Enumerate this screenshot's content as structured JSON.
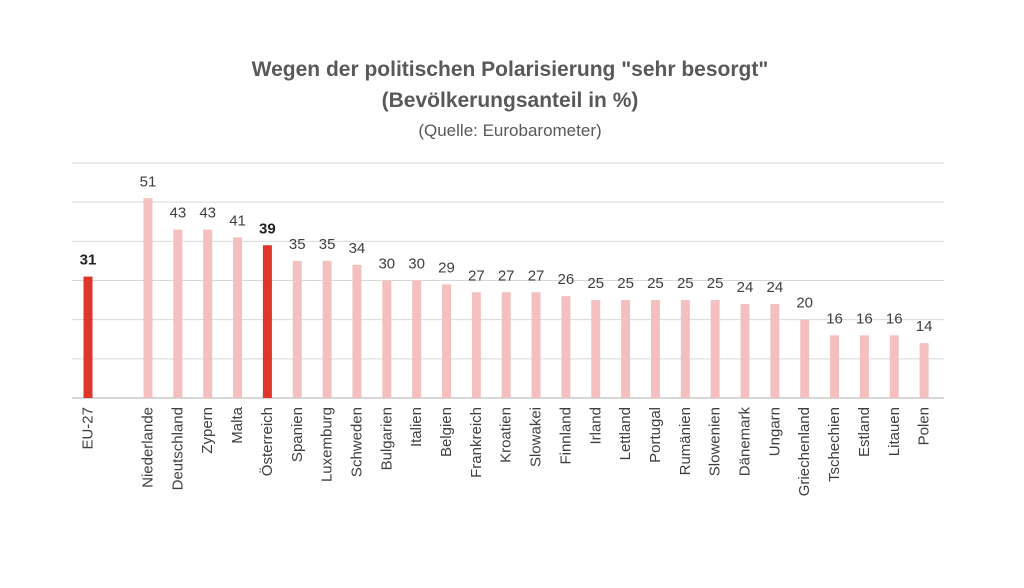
{
  "chart_data": {
    "type": "bar",
    "title_line1": "Wegen der politischen Polarisierung \"sehr besorgt\"",
    "title_line2": "(Bevölkerungsanteil in %)",
    "subtitle": "(Quelle: Eurobarometer)",
    "categories": [
      "EU-27",
      "Niederlande",
      "Deutschland",
      "Zypern",
      "Malta",
      "Österreich",
      "Spanien",
      "Luxemburg",
      "Schweden",
      "Bulgarien",
      "Italien",
      "Belgien",
      "Frankreich",
      "Kroatien",
      "Slowakei",
      "Finnland",
      "Irland",
      "Lettland",
      "Portugal",
      "Rumänien",
      "Slowenien",
      "Dänemark",
      "Ungarn",
      "Griechenland",
      "Tschechien",
      "Estland",
      "Litauen",
      "Polen"
    ],
    "values": [
      31,
      51,
      43,
      43,
      41,
      39,
      35,
      35,
      34,
      30,
      30,
      29,
      27,
      27,
      27,
      26,
      25,
      25,
      25,
      25,
      25,
      24,
      24,
      20,
      16,
      16,
      16,
      14
    ],
    "highlighted": [
      "EU-27",
      "Österreich"
    ],
    "ylim": [
      0,
      60
    ],
    "grid": true,
    "colors": {
      "highlight": "#e0352b",
      "default": "#f4c0bf"
    }
  }
}
